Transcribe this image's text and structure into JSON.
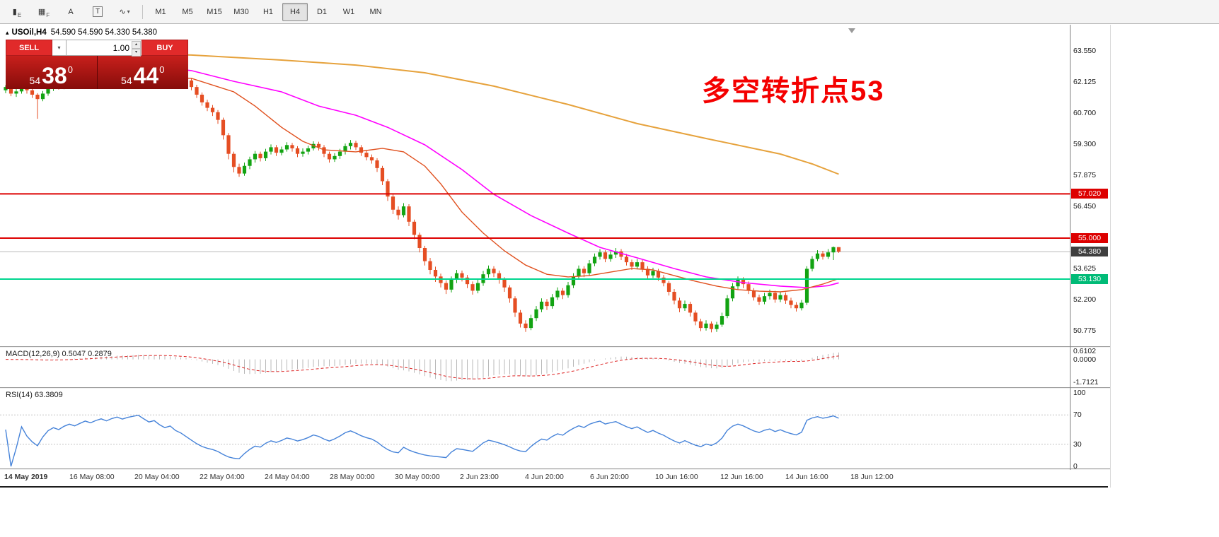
{
  "toolbar": {
    "icons": [
      {
        "name": "candlestick-chart-icon",
        "glyph": "▮",
        "sub": "E"
      },
      {
        "name": "grid-icon",
        "glyph": "▦",
        "sub": "F"
      },
      {
        "name": "font-icon",
        "glyph": "A"
      },
      {
        "name": "text-label-icon",
        "glyph": "T",
        "boxed": true
      },
      {
        "name": "polyline-tool-icon",
        "glyph": "∿",
        "caret": true
      }
    ],
    "caret_glyph": "▾",
    "timeframes": [
      "M1",
      "M5",
      "M15",
      "M30",
      "H1",
      "H4",
      "D1",
      "W1",
      "MN"
    ],
    "active_timeframe": "H4"
  },
  "chart": {
    "collapse_glyph": "▴",
    "title_symbol": "USOil,H4",
    "title_ohlc": "54.590 54.590 54.330 54.380",
    "annotation": "多空转折点53"
  },
  "trade_panel": {
    "sell_label": "SELL",
    "buy_label": "BUY",
    "volume": "1.00",
    "caret_glyph": "▾",
    "spin_up": "▴",
    "spin_down": "▾",
    "sell_price": {
      "small": "54",
      "big": "38",
      "sup": "0"
    },
    "buy_price": {
      "small": "54",
      "big": "44",
      "sup": "0"
    }
  },
  "indicators": {
    "macd_label": "MACD(12,26,9) 0.5047 0.2879",
    "rsi_label": "RSI(14) 63.3809"
  },
  "chart_data": {
    "type": "candlestick",
    "symbol": "USOil",
    "timeframe": "H4",
    "last_price": 54.38,
    "ylim": [
      50.1,
      64.7
    ],
    "price_ticks": [
      63.55,
      62.125,
      60.7,
      59.3,
      57.875,
      56.45,
      53.625,
      52.2,
      50.775
    ],
    "badges": [
      {
        "label": "57.020",
        "price": 57.02,
        "bg": "#dd0000"
      },
      {
        "label": "55.000",
        "price": 55.0,
        "bg": "#dd0000"
      },
      {
        "label": "54.380",
        "price": 54.38,
        "bg": "#3f3f3f"
      },
      {
        "label": "53.130",
        "price": 53.13,
        "bg": "#00bb77"
      }
    ],
    "hlines": [
      {
        "price": 57.02,
        "color": "#dd0000",
        "width": 2
      },
      {
        "price": 55.0,
        "color": "#dd0000",
        "width": 2
      },
      {
        "price": 53.13,
        "color": "#00d68f",
        "width": 2
      }
    ],
    "time_labels": [
      "14 May 2019",
      "16 May 08:00",
      "20 May 04:00",
      "22 May 04:00",
      "24 May 04:00",
      "28 May 00:00",
      "30 May 00:00",
      "2 Jun 23:00",
      "4 Jun 20:00",
      "6 Jun 20:00",
      "10 Jun 16:00",
      "12 Jun 16:00",
      "14 Jun 16:00",
      "18 Jun 12:00"
    ],
    "ohlc": [
      [
        61.75,
        61.98,
        61.62,
        61.9
      ],
      [
        61.9,
        61.97,
        61.48,
        61.6
      ],
      [
        61.6,
        61.82,
        61.45,
        61.7
      ],
      [
        61.7,
        62.05,
        61.6,
        61.95
      ],
      [
        61.95,
        62.02,
        61.6,
        61.75
      ],
      [
        61.75,
        61.85,
        61.4,
        61.55
      ],
      [
        61.55,
        61.62,
        60.45,
        61.35
      ],
      [
        61.35,
        61.72,
        61.25,
        61.6
      ],
      [
        61.6,
        61.95,
        61.5,
        61.85
      ],
      [
        61.85,
        62.1,
        61.72,
        62.0
      ],
      [
        62.0,
        62.12,
        61.78,
        61.9
      ],
      [
        61.9,
        62.2,
        61.8,
        62.1
      ],
      [
        62.1,
        62.35,
        62.0,
        62.25
      ],
      [
        62.25,
        62.38,
        62.02,
        62.15
      ],
      [
        62.15,
        62.45,
        62.05,
        62.35
      ],
      [
        62.35,
        62.65,
        62.25,
        62.55
      ],
      [
        62.55,
        62.68,
        62.32,
        62.45
      ],
      [
        62.45,
        62.75,
        62.35,
        62.65
      ],
      [
        62.65,
        62.92,
        62.55,
        62.8
      ],
      [
        62.8,
        62.9,
        62.58,
        62.7
      ],
      [
        62.7,
        63.0,
        62.6,
        62.9
      ],
      [
        62.9,
        63.15,
        62.8,
        63.05
      ],
      [
        63.05,
        63.18,
        62.82,
        62.95
      ],
      [
        62.95,
        63.22,
        62.85,
        63.1
      ],
      [
        63.1,
        63.32,
        63.0,
        63.2
      ],
      [
        63.2,
        63.42,
        63.08,
        63.3
      ],
      [
        63.3,
        63.38,
        63.02,
        63.15
      ],
      [
        63.15,
        63.25,
        62.88,
        63.0
      ],
      [
        63.0,
        63.22,
        62.9,
        63.1
      ],
      [
        63.1,
        63.18,
        62.78,
        62.9
      ],
      [
        62.9,
        63.0,
        62.62,
        62.75
      ],
      [
        62.75,
        62.98,
        62.62,
        62.85
      ],
      [
        62.85,
        62.95,
        62.48,
        62.6
      ],
      [
        62.6,
        62.72,
        62.3,
        62.45
      ],
      [
        62.45,
        62.55,
        62.05,
        62.2
      ],
      [
        62.2,
        62.3,
        61.75,
        61.9
      ],
      [
        61.9,
        62.0,
        61.4,
        61.55
      ],
      [
        61.55,
        61.65,
        61.05,
        61.2
      ],
      [
        61.2,
        61.32,
        60.8,
        60.95
      ],
      [
        60.95,
        61.08,
        60.58,
        60.75
      ],
      [
        60.75,
        60.85,
        60.22,
        60.4
      ],
      [
        60.4,
        60.5,
        59.5,
        59.7
      ],
      [
        59.7,
        59.8,
        58.6,
        58.85
      ],
      [
        58.85,
        58.95,
        58.0,
        58.25
      ],
      [
        58.25,
        58.4,
        57.8,
        57.95
      ],
      [
        57.95,
        58.45,
        57.85,
        58.3
      ],
      [
        58.3,
        58.72,
        58.15,
        58.6
      ],
      [
        58.6,
        58.98,
        58.45,
        58.85
      ],
      [
        58.85,
        58.95,
        58.5,
        58.65
      ],
      [
        58.65,
        59.08,
        58.52,
        58.95
      ],
      [
        58.95,
        59.28,
        58.82,
        59.15
      ],
      [
        59.15,
        59.25,
        58.75,
        58.9
      ],
      [
        58.9,
        59.18,
        58.78,
        59.05
      ],
      [
        59.05,
        59.38,
        58.95,
        59.25
      ],
      [
        59.25,
        59.35,
        58.95,
        59.1
      ],
      [
        59.1,
        59.2,
        58.7,
        58.85
      ],
      [
        58.85,
        59.1,
        58.72,
        58.95
      ],
      [
        58.95,
        59.22,
        58.82,
        59.1
      ],
      [
        59.1,
        59.42,
        59.0,
        59.3
      ],
      [
        59.3,
        59.4,
        59.0,
        59.15
      ],
      [
        59.15,
        59.25,
        58.7,
        58.85
      ],
      [
        58.85,
        58.95,
        58.45,
        58.6
      ],
      [
        58.6,
        58.88,
        58.48,
        58.75
      ],
      [
        58.75,
        59.08,
        58.62,
        58.95
      ],
      [
        58.95,
        59.32,
        58.82,
        59.2
      ],
      [
        59.2,
        59.48,
        59.05,
        59.35
      ],
      [
        59.35,
        59.45,
        59.02,
        59.15
      ],
      [
        59.15,
        59.25,
        58.75,
        58.9
      ],
      [
        58.9,
        59.0,
        58.55,
        58.7
      ],
      [
        58.7,
        58.82,
        58.4,
        58.55
      ],
      [
        58.55,
        58.65,
        58.02,
        58.2
      ],
      [
        58.2,
        58.3,
        57.42,
        57.6
      ],
      [
        57.6,
        57.7,
        56.7,
        56.9
      ],
      [
        56.9,
        57.0,
        56.1,
        56.3
      ],
      [
        56.3,
        56.45,
        55.85,
        56.05
      ],
      [
        56.05,
        56.6,
        55.95,
        56.45
      ],
      [
        56.45,
        56.55,
        55.55,
        55.75
      ],
      [
        55.75,
        55.85,
        54.95,
        55.15
      ],
      [
        55.15,
        55.25,
        54.35,
        54.55
      ],
      [
        54.55,
        54.65,
        53.75,
        53.95
      ],
      [
        53.95,
        54.1,
        53.35,
        53.55
      ],
      [
        53.55,
        53.7,
        53.0,
        53.25
      ],
      [
        53.25,
        53.38,
        52.75,
        52.95
      ],
      [
        52.95,
        53.08,
        52.45,
        52.65
      ],
      [
        52.65,
        53.25,
        52.52,
        53.1
      ],
      [
        53.1,
        53.55,
        52.95,
        53.4
      ],
      [
        53.4,
        53.52,
        53.02,
        53.2
      ],
      [
        53.2,
        53.32,
        52.72,
        52.9
      ],
      [
        52.9,
        53.02,
        52.42,
        52.6
      ],
      [
        52.6,
        53.1,
        52.48,
        52.95
      ],
      [
        52.95,
        53.5,
        52.82,
        53.35
      ],
      [
        53.35,
        53.75,
        53.2,
        53.6
      ],
      [
        53.6,
        53.72,
        53.22,
        53.4
      ],
      [
        53.4,
        53.52,
        52.92,
        53.1
      ],
      [
        53.1,
        53.22,
        52.55,
        52.75
      ],
      [
        52.75,
        52.85,
        52.05,
        52.25
      ],
      [
        52.25,
        52.35,
        51.4,
        51.6
      ],
      [
        51.6,
        51.72,
        50.92,
        51.1
      ],
      [
        51.1,
        51.25,
        50.72,
        50.9
      ],
      [
        50.9,
        51.5,
        50.8,
        51.35
      ],
      [
        51.35,
        51.9,
        51.22,
        51.75
      ],
      [
        51.75,
        52.25,
        51.62,
        52.1
      ],
      [
        52.1,
        52.22,
        51.72,
        51.9
      ],
      [
        51.9,
        52.45,
        51.78,
        52.3
      ],
      [
        52.3,
        52.75,
        52.18,
        52.6
      ],
      [
        52.6,
        52.72,
        52.22,
        52.4
      ],
      [
        52.4,
        53.0,
        52.28,
        52.85
      ],
      [
        52.85,
        53.4,
        52.72,
        53.25
      ],
      [
        53.25,
        53.75,
        53.12,
        53.6
      ],
      [
        53.6,
        53.72,
        53.22,
        53.4
      ],
      [
        53.4,
        54.0,
        53.28,
        53.85
      ],
      [
        53.85,
        54.3,
        53.72,
        54.15
      ],
      [
        54.15,
        54.5,
        54.02,
        54.35
      ],
      [
        54.35,
        54.45,
        53.9,
        54.05
      ],
      [
        54.05,
        54.4,
        53.92,
        54.25
      ],
      [
        54.25,
        54.55,
        54.1,
        54.4
      ],
      [
        54.4,
        54.5,
        54.0,
        54.15
      ],
      [
        54.15,
        54.28,
        53.75,
        53.9
      ],
      [
        53.9,
        54.02,
        53.55,
        53.7
      ],
      [
        53.7,
        54.05,
        53.58,
        53.9
      ],
      [
        53.9,
        54.0,
        53.45,
        53.6
      ],
      [
        53.6,
        53.72,
        53.15,
        53.3
      ],
      [
        53.3,
        53.65,
        53.18,
        53.5
      ],
      [
        53.5,
        53.6,
        53.05,
        53.2
      ],
      [
        53.2,
        53.32,
        52.8,
        52.95
      ],
      [
        52.95,
        53.05,
        52.38,
        52.55
      ],
      [
        52.55,
        52.68,
        51.98,
        52.15
      ],
      [
        52.15,
        52.28,
        51.62,
        51.8
      ],
      [
        51.8,
        52.15,
        51.68,
        52.0
      ],
      [
        52.0,
        52.1,
        51.42,
        51.6
      ],
      [
        51.6,
        51.7,
        51.02,
        51.2
      ],
      [
        51.2,
        51.32,
        50.75,
        50.9
      ],
      [
        50.9,
        51.25,
        50.78,
        51.1
      ],
      [
        51.1,
        51.2,
        50.7,
        50.85
      ],
      [
        50.85,
        51.18,
        50.72,
        51.05
      ],
      [
        51.05,
        51.6,
        50.95,
        51.45
      ],
      [
        51.45,
        52.4,
        51.35,
        52.25
      ],
      [
        52.25,
        52.95,
        52.12,
        52.8
      ],
      [
        52.8,
        53.25,
        52.65,
        53.1
      ],
      [
        53.1,
        53.22,
        52.72,
        52.9
      ],
      [
        52.9,
        53.02,
        52.45,
        52.6
      ],
      [
        52.6,
        52.72,
        52.15,
        52.3
      ],
      [
        52.3,
        52.42,
        51.95,
        52.1
      ],
      [
        52.1,
        52.5,
        51.98,
        52.35
      ],
      [
        52.35,
        52.65,
        52.2,
        52.5
      ],
      [
        52.5,
        52.6,
        52.05,
        52.2
      ],
      [
        52.2,
        52.55,
        52.08,
        52.4
      ],
      [
        52.4,
        52.52,
        52.0,
        52.15
      ],
      [
        52.15,
        52.28,
        51.8,
        51.95
      ],
      [
        51.95,
        52.08,
        51.65,
        51.8
      ],
      [
        51.8,
        52.18,
        51.7,
        52.05
      ],
      [
        52.05,
        53.72,
        51.95,
        53.6
      ],
      [
        53.6,
        54.18,
        53.48,
        54.05
      ],
      [
        54.05,
        54.45,
        53.95,
        54.3
      ],
      [
        54.3,
        54.42,
        54.02,
        54.15
      ],
      [
        54.15,
        54.5,
        54.05,
        54.35
      ],
      [
        54.35,
        54.62,
        54.0,
        54.59
      ],
      [
        54.59,
        54.59,
        54.33,
        54.38
      ]
    ],
    "ma_slow_points": [
      [
        0,
        63.52
      ],
      [
        20,
        63.45
      ],
      [
        35,
        63.36
      ],
      [
        52,
        63.13
      ],
      [
        66,
        62.9
      ],
      [
        79,
        62.55
      ],
      [
        92,
        61.94
      ],
      [
        106,
        61.1
      ],
      [
        119,
        60.23
      ],
      [
        132,
        59.55
      ],
      [
        146,
        58.84
      ],
      [
        152,
        58.39
      ],
      [
        157,
        57.92
      ]
    ],
    "ma_mid_points": [
      [
        0,
        63.3
      ],
      [
        20,
        63.05
      ],
      [
        35,
        62.65
      ],
      [
        43,
        62.16
      ],
      [
        52,
        61.68
      ],
      [
        59,
        61.03
      ],
      [
        66,
        60.61
      ],
      [
        72,
        60.06
      ],
      [
        79,
        59.26
      ],
      [
        86,
        58.13
      ],
      [
        92,
        57.0
      ],
      [
        99,
        56.03
      ],
      [
        106,
        55.23
      ],
      [
        112,
        54.58
      ],
      [
        119,
        54.1
      ],
      [
        126,
        53.61
      ],
      [
        132,
        53.23
      ],
      [
        139,
        52.97
      ],
      [
        146,
        52.81
      ],
      [
        151,
        52.74
      ],
      [
        155,
        52.83
      ],
      [
        157,
        52.96
      ]
    ],
    "ma_fast_points": [
      [
        0,
        62.6
      ],
      [
        20,
        62.4
      ],
      [
        35,
        62.3
      ],
      [
        43,
        61.68
      ],
      [
        47,
        61.03
      ],
      [
        52,
        60.06
      ],
      [
        56,
        59.42
      ],
      [
        60,
        59.03
      ],
      [
        66,
        58.94
      ],
      [
        71,
        59.1
      ],
      [
        75,
        58.94
      ],
      [
        79,
        58.29
      ],
      [
        82,
        57.48
      ],
      [
        86,
        56.19
      ],
      [
        90,
        55.23
      ],
      [
        94,
        54.42
      ],
      [
        98,
        53.77
      ],
      [
        102,
        53.35
      ],
      [
        106,
        53.23
      ],
      [
        110,
        53.29
      ],
      [
        114,
        53.45
      ],
      [
        118,
        53.61
      ],
      [
        122,
        53.55
      ],
      [
        126,
        53.29
      ],
      [
        130,
        53.03
      ],
      [
        134,
        52.81
      ],
      [
        138,
        52.65
      ],
      [
        142,
        52.58
      ],
      [
        146,
        52.55
      ],
      [
        150,
        52.65
      ],
      [
        154,
        52.9
      ],
      [
        157,
        53.15
      ]
    ],
    "macd": {
      "params": [
        12,
        26,
        9
      ],
      "current": [
        0.5047,
        0.2879
      ]
    },
    "macd_axis": [
      0.6102,
      0,
      -1.7121
    ],
    "rsi": {
      "period": 14,
      "current": 63.3809
    },
    "rsi_axis": [
      100,
      70,
      30,
      0
    ],
    "colors": {
      "up": "#12a312",
      "down": "#e54e23",
      "ma_slow": "#e6a23c",
      "ma_mid": "#ff00ff",
      "ma_fast": "#e0501e",
      "macd_hist": "#b8b8b8",
      "macd_signal": "#dd2222",
      "rsi": "#4683d9"
    }
  }
}
